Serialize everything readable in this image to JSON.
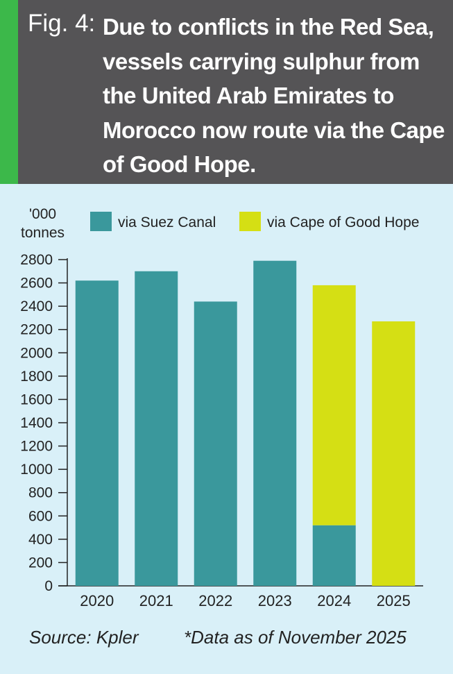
{
  "header": {
    "fig_label": "Fig. 4:",
    "title": "Due to conflicts in the Red Sea, vessels carrying sulphur from the United Arab Emirates to Morocco now route via the Cape of Good Hope."
  },
  "colors": {
    "header_bg": "#555456",
    "accent": "#3cb84a",
    "background": "#d9f0f8",
    "suez": "#3a989c",
    "cape": "#d5df14"
  },
  "chart_data": {
    "type": "bar",
    "stacked": true,
    "categories": [
      "2020",
      "2021",
      "2022",
      "2023",
      "2024",
      "2025"
    ],
    "series": [
      {
        "name": "via Suez Canal",
        "values": [
          2620,
          2700,
          2440,
          2790,
          520,
          0
        ]
      },
      {
        "name": "via Cape of Good Hope",
        "values": [
          0,
          0,
          0,
          0,
          2060,
          2270
        ]
      }
    ],
    "ylabel": "'000 tonnes",
    "ylim": [
      0,
      2800
    ],
    "yticks": [
      0,
      200,
      400,
      600,
      800,
      1000,
      1200,
      1400,
      1600,
      1800,
      2000,
      2200,
      2400,
      2600,
      2800
    ],
    "legend_position": "top",
    "grid": false
  },
  "footer": {
    "source": "Source: Kpler",
    "note": "*Data as of November 2025"
  }
}
